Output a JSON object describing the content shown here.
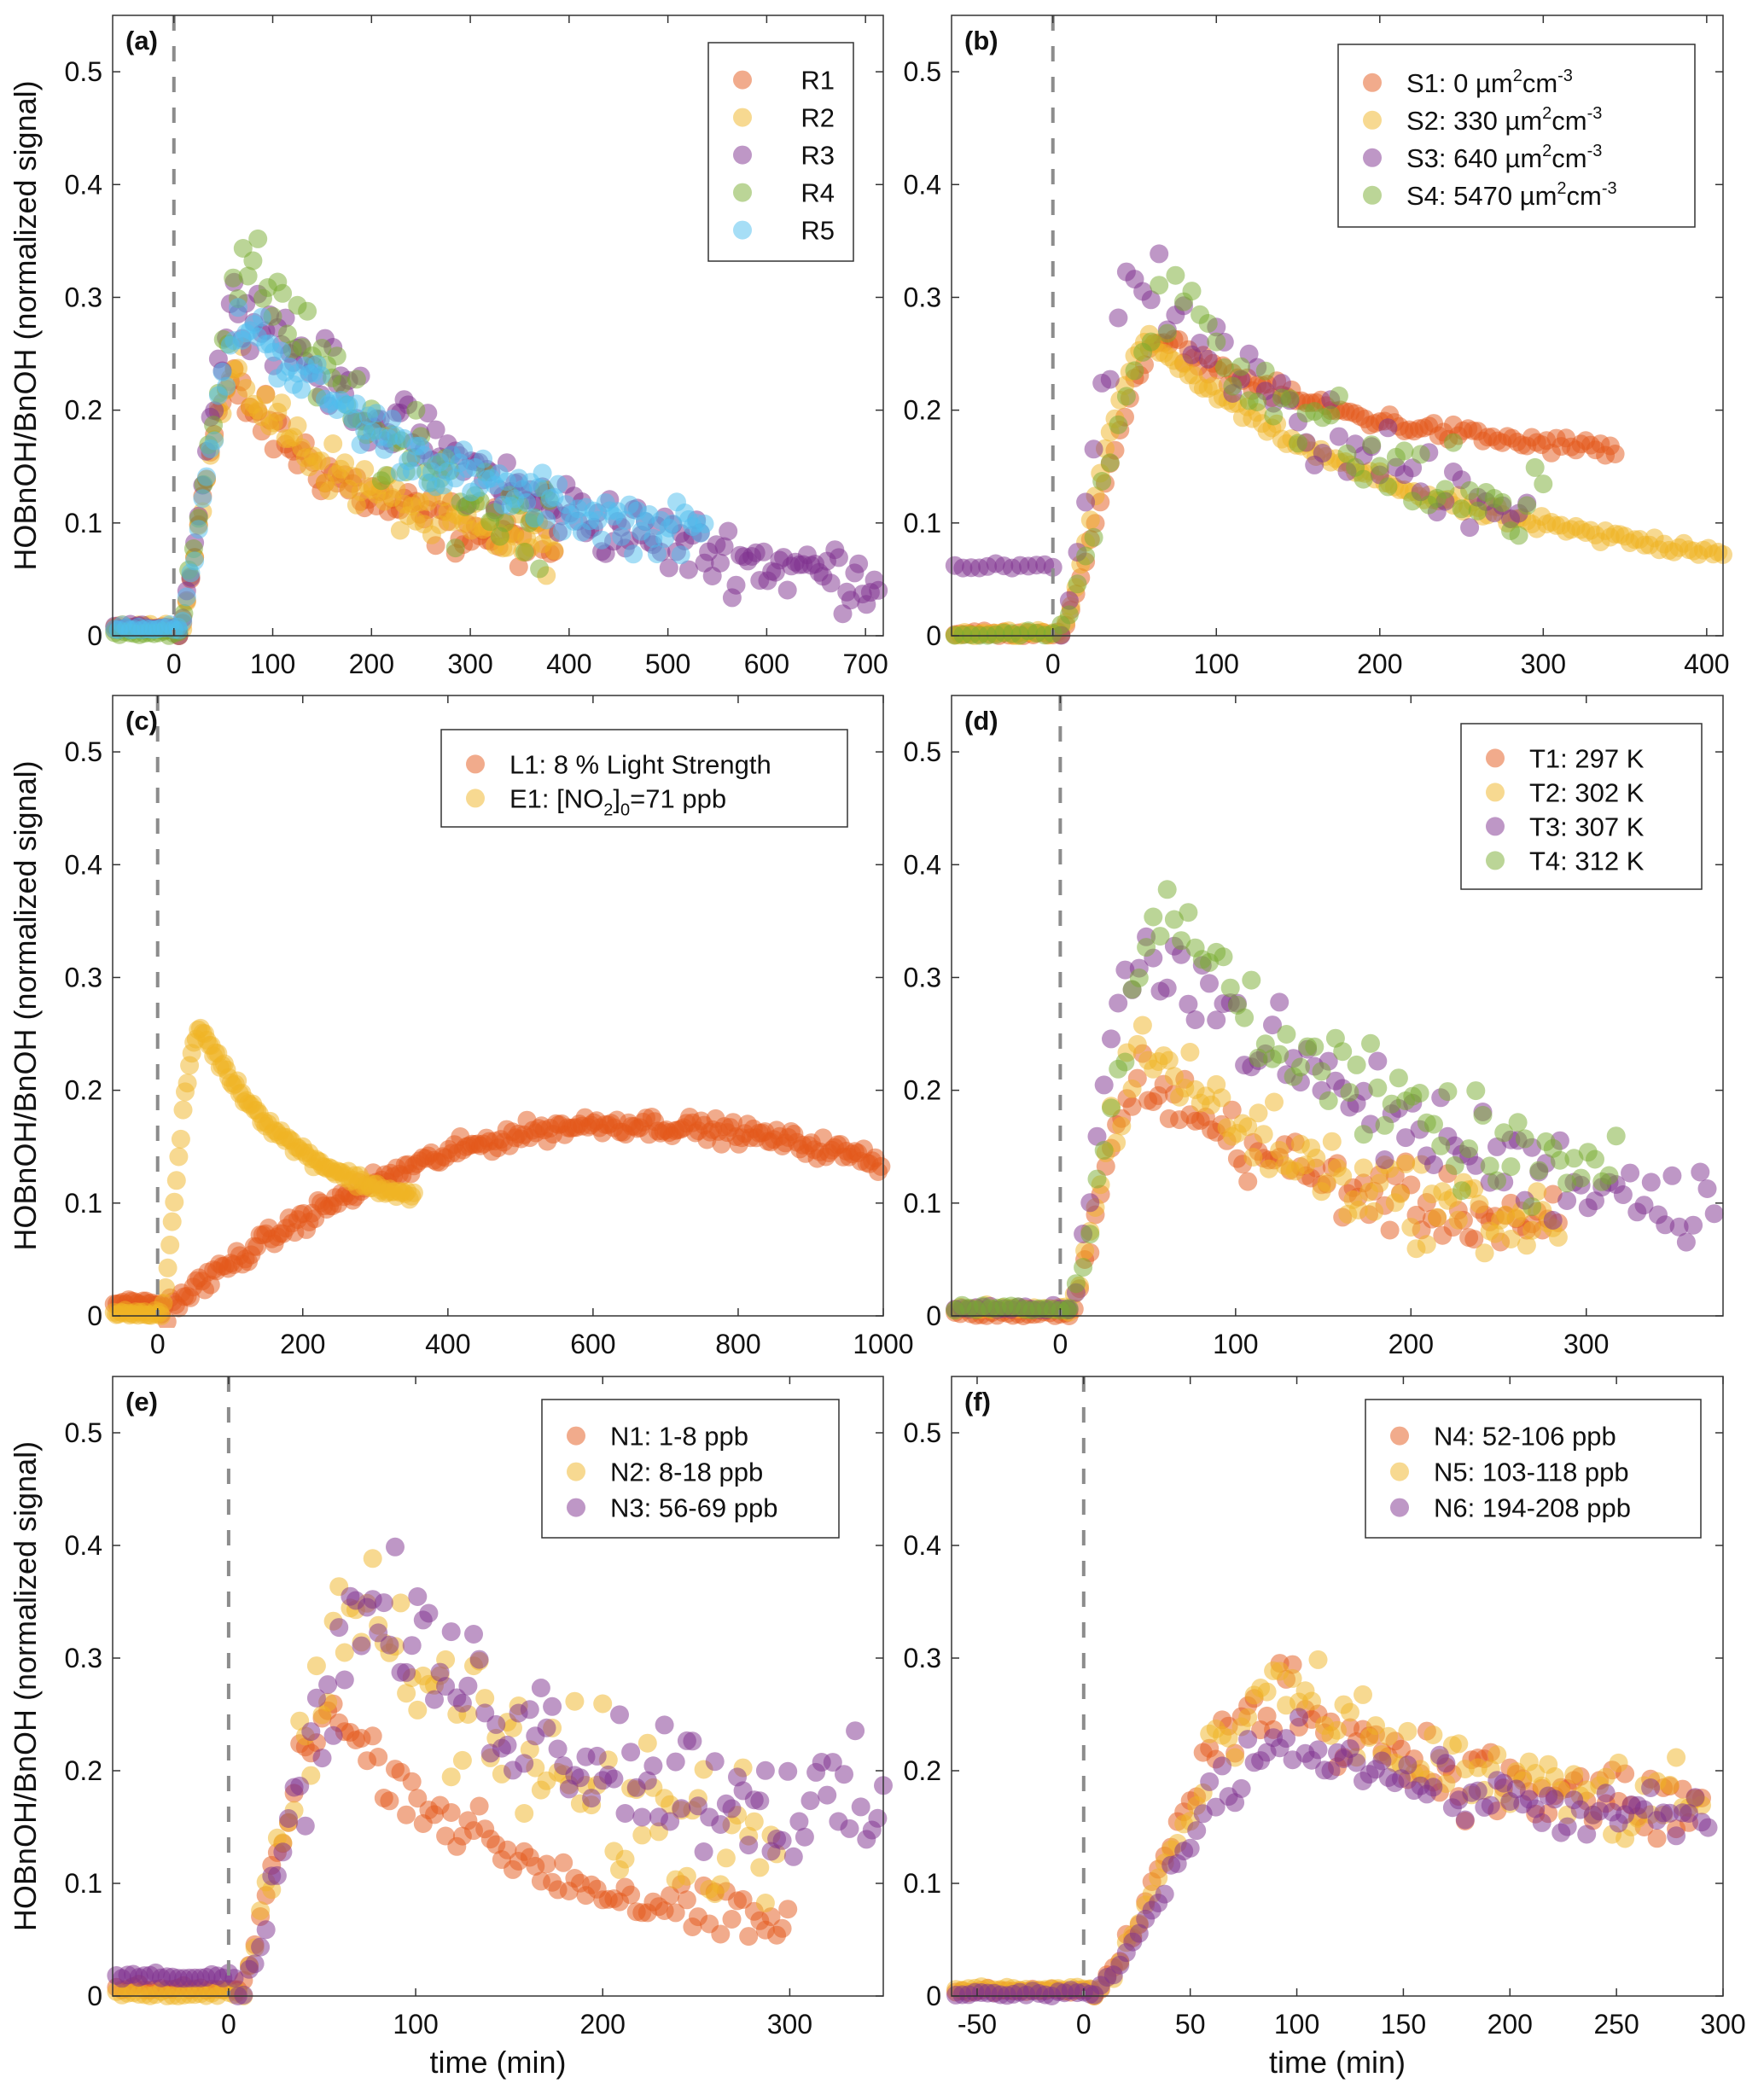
{
  "figure": {
    "ylabel_full": "HOBnOH/BnOH (normalized signal)",
    "ylabel_short": "HOBnOH/BnOH",
    "xlabel": "time (min)",
    "marker_alpha": 0.5,
    "event_line": {
      "x": 0,
      "style": "dashed",
      "color": "#8c8c8c"
    },
    "colors": {
      "orange": "#E3581A",
      "yellow": "#F0B323",
      "purple": "#7E2F8E",
      "green": "#77AC30",
      "cyan": "#4DBEEE"
    }
  },
  "chart_data": [
    {
      "id": "a",
      "panel_label": "(a)",
      "type": "scatter",
      "xlabel": "",
      "ylabel": "HOBnOH/BnOH (normalized signal)",
      "xlim": [
        -62,
        718
      ],
      "ylim": [
        0,
        0.55
      ],
      "xticks": [
        0,
        100,
        200,
        300,
        400,
        500,
        600,
        700
      ],
      "yticks": [
        0,
        0.1,
        0.2,
        0.3,
        0.4,
        0.5
      ],
      "legend_position": "top-right",
      "series": [
        {
          "name": "R1",
          "color": "#E3581A",
          "peak_t": 60,
          "peak_v": 0.22,
          "end_t": 385,
          "end_v": 0.08,
          "noise": 0.02,
          "step": 4,
          "pre": 0.005
        },
        {
          "name": "R2",
          "color": "#F0B323",
          "peak_t": 65,
          "peak_v": 0.23,
          "end_t": 385,
          "end_v": 0.08,
          "noise": 0.02,
          "step": 4,
          "pre": 0.005
        },
        {
          "name": "R3",
          "color": "#7E2F8E",
          "peak_t": 70,
          "peak_v": 0.3,
          "end_t": 715,
          "end_v": 0.05,
          "noise": 0.025,
          "step": 4,
          "pre": 0.005
        },
        {
          "name": "R4",
          "color": "#77AC30",
          "peak_t": 80,
          "peak_v": 0.34,
          "end_t": 380,
          "end_v": 0.1,
          "noise": 0.035,
          "step": 5,
          "pre": 0.0
        },
        {
          "name": "R5",
          "color": "#4DBEEE",
          "peak_t": 75,
          "peak_v": 0.28,
          "end_t": 540,
          "end_v": 0.09,
          "noise": 0.02,
          "step": 4,
          "pre": 0.005
        }
      ]
    },
    {
      "id": "b",
      "panel_label": "(b)",
      "type": "scatter",
      "xlabel": "",
      "ylabel": "",
      "xlim": [
        -62,
        410
      ],
      "ylim": [
        0,
        0.55
      ],
      "xticks": [
        0,
        100,
        200,
        300,
        400
      ],
      "yticks": [
        0,
        0.1,
        0.2,
        0.3,
        0.4,
        0.5
      ],
      "legend_position": "top-right",
      "series": [
        {
          "name": "S1: 0 µm²cm⁻³",
          "label_main": "S1: 0 µm",
          "color": "#E3581A",
          "peak_t": 70,
          "peak_v": 0.26,
          "end_t": 345,
          "end_v": 0.165,
          "noise": 0.007,
          "step": 3,
          "pre": 0.0
        },
        {
          "name": "S2: 330 µm²cm⁻³",
          "label_main": "S2: 330 µm",
          "color": "#F0B323",
          "peak_t": 60,
          "peak_v": 0.26,
          "end_t": 410,
          "end_v": 0.075,
          "noise": 0.006,
          "step": 3,
          "pre": 0.0
        },
        {
          "name": "S3: 640 µm²cm⁻³",
          "label_main": "S3: 640 µm",
          "color": "#7E2F8E",
          "peak_t": 55,
          "peak_v": 0.33,
          "end_t": 290,
          "end_v": 0.12,
          "noise": 0.03,
          "step": 5,
          "pre": 0.06
        },
        {
          "name": "S4: 5470 µm²cm⁻³",
          "label_main": "S4: 5470 µm",
          "color": "#77AC30",
          "peak_t": 80,
          "peak_v": 0.31,
          "end_t": 300,
          "end_v": 0.11,
          "noise": 0.035,
          "step": 5,
          "pre": 0.0
        }
      ]
    },
    {
      "id": "c",
      "panel_label": "(c)",
      "type": "scatter",
      "xlabel": "",
      "ylabel": "HOBnOH/BnOH (normalized signal)",
      "xlim": [
        -62,
        1000
      ],
      "ylim": [
        0,
        0.55
      ],
      "xticks": [
        0,
        200,
        400,
        600,
        800,
        1000
      ],
      "yticks": [
        0,
        0.1,
        0.2,
        0.3,
        0.4,
        0.5
      ],
      "legend_position": "top-right",
      "series": [
        {
          "name": "L1: 8 % Light Strength",
          "color": "#E3581A",
          "kind": "slow",
          "peak_t": 620,
          "peak_v": 0.17,
          "end_t": 1000,
          "end_v": 0.135,
          "noise": 0.008,
          "step": 4,
          "pre": 0.01
        },
        {
          "name": "E1: [NO2]0=71 ppb",
          "label_main": "E1: [NO",
          "color": "#F0B323",
          "peak_t": 60,
          "peak_v": 0.255,
          "end_t": 355,
          "end_v": 0.105,
          "noise": 0.005,
          "step": 3,
          "pre": 0.0
        }
      ]
    },
    {
      "id": "d",
      "panel_label": "(d)",
      "type": "scatter",
      "xlabel": "",
      "ylabel": "",
      "xlim": [
        -62,
        378
      ],
      "ylim": [
        0,
        0.55
      ],
      "xticks": [
        0,
        100,
        200,
        300
      ],
      "yticks": [
        0,
        0.1,
        0.2,
        0.3,
        0.4,
        0.5
      ],
      "legend_position": "top-right",
      "series": [
        {
          "name": "T1: 297 K",
          "color": "#E3581A",
          "peak_t": 50,
          "peak_v": 0.21,
          "end_t": 285,
          "end_v": 0.08,
          "noise": 0.025,
          "step": 3,
          "pre": 0.0
        },
        {
          "name": "T2: 302 K",
          "color": "#F0B323",
          "peak_t": 50,
          "peak_v": 0.24,
          "end_t": 285,
          "end_v": 0.08,
          "noise": 0.03,
          "step": 3,
          "pre": 0.005
        },
        {
          "name": "T3: 307 K",
          "color": "#7E2F8E",
          "peak_t": 50,
          "peak_v": 0.34,
          "end_t": 375,
          "end_v": 0.1,
          "noise": 0.035,
          "step": 4,
          "pre": 0.005
        },
        {
          "name": "T4: 312 K",
          "color": "#77AC30",
          "peak_t": 65,
          "peak_v": 0.36,
          "end_t": 320,
          "end_v": 0.12,
          "noise": 0.035,
          "step": 4,
          "pre": 0.005
        }
      ]
    },
    {
      "id": "e",
      "panel_label": "(e)",
      "type": "scatter",
      "xlabel": "time (min)",
      "ylabel": "HOBnOH/BnOH (normalized signal)",
      "xlim": [
        -62,
        350
      ],
      "ylim": [
        0,
        0.55
      ],
      "xticks": [
        0,
        100,
        200,
        300
      ],
      "yticks": [
        0,
        0.1,
        0.2,
        0.3,
        0.4,
        0.5
      ],
      "legend_position": "top-right",
      "series": [
        {
          "name": "N1: 1-8 ppb",
          "color": "#E3581A",
          "peak_t": 55,
          "peak_v": 0.25,
          "end_t": 300,
          "end_v": 0.06,
          "noise": 0.02,
          "step": 3,
          "pre": 0.005
        },
        {
          "name": "N2: 8-18 ppb",
          "color": "#F0B323",
          "peak_t": 70,
          "peak_v": 0.34,
          "end_t": 295,
          "end_v": 0.14,
          "noise": 0.06,
          "step": 3,
          "pre": 0.0
        },
        {
          "name": "N3: 56-69 ppb",
          "color": "#7E2F8E",
          "peak_t": 80,
          "peak_v": 0.34,
          "end_t": 350,
          "end_v": 0.16,
          "noise": 0.05,
          "step": 3,
          "pre": 0.015
        }
      ]
    },
    {
      "id": "f",
      "panel_label": "(f)",
      "type": "scatter",
      "xlabel": "time (min)",
      "ylabel": "",
      "xlim": [
        -62,
        300
      ],
      "ylim": [
        0,
        0.55
      ],
      "xticks": [
        -50,
        0,
        50,
        100,
        150,
        200,
        250,
        300
      ],
      "yticks": [
        0,
        0.1,
        0.2,
        0.3,
        0.4,
        0.5
      ],
      "legend_position": "top-right",
      "series": [
        {
          "name": "N4: 52-106 ppb",
          "color": "#E3581A",
          "peak_t": 95,
          "peak_v": 0.27,
          "end_t": 290,
          "end_v": 0.165,
          "noise": 0.03,
          "step": 3,
          "pre": 0.003
        },
        {
          "name": "N5: 103-118 ppb",
          "color": "#F0B323",
          "peak_t": 100,
          "peak_v": 0.27,
          "end_t": 290,
          "end_v": 0.165,
          "noise": 0.03,
          "step": 3,
          "pre": 0.005
        },
        {
          "name": "N6: 194-208 ppb",
          "color": "#7E2F8E",
          "peak_t": 100,
          "peak_v": 0.23,
          "end_t": 295,
          "end_v": 0.155,
          "noise": 0.02,
          "step": 3,
          "pre": 0.0
        }
      ]
    }
  ]
}
